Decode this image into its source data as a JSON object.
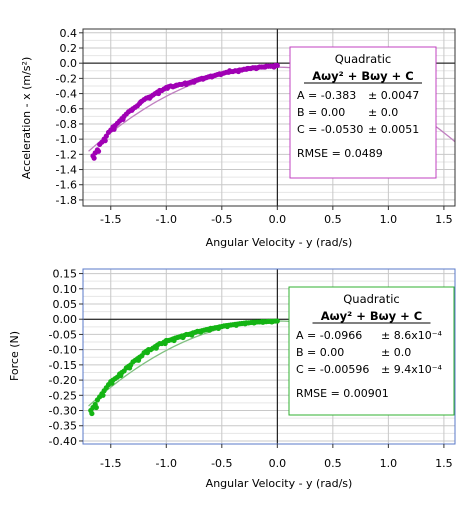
{
  "chart_data": [
    {
      "type": "scatter",
      "xlabel": "Angular Velocity - y (rad/s)",
      "ylabel": "Acceleration - x (m/s²)",
      "xlim": [
        -1.75,
        1.6
      ],
      "ylim": [
        -1.88,
        0.45
      ],
      "xticks": [
        "-1.5",
        "-1.0",
        "-0.5",
        "0.0",
        "0.5",
        "1.0",
        "1.5"
      ],
      "yticks": [
        "0.4",
        "0.2",
        "0.0",
        "-0.2",
        "-0.4",
        "-0.6",
        "-0.8",
        "-1.0",
        "-1.2",
        "-1.4",
        "-1.6",
        "-1.8"
      ],
      "grid": true,
      "color": "#a000b4",
      "fit": {
        "model": "quadratic",
        "A": -0.383,
        "B": 0.0,
        "C": -0.053,
        "range": [
          -1.7,
          1.6
        ],
        "color": "#c080c0",
        "title": "Quadratic",
        "formula": "Aωy² + Bωy + C",
        "rows": [
          {
            "label": "A = -0.383",
            "err": "± 0.0047"
          },
          {
            "label": "B = 0.00",
            "err": "± 0.0"
          },
          {
            "label": "C = -0.0530",
            "err": "± 0.0051"
          }
        ],
        "rmse": "RMSE = 0.0489",
        "box_color": "#c040c0"
      },
      "series": [
        {
          "points": [
            [
              -1.66,
              -1.22
            ],
            [
              -1.64,
              -1.18
            ],
            [
              -1.62,
              -1.14
            ],
            [
              -1.6,
              -1.07
            ],
            [
              -1.58,
              -1.04
            ],
            [
              -1.56,
              -1.0
            ],
            [
              -1.54,
              -0.96
            ],
            [
              -1.52,
              -0.91
            ],
            [
              -1.5,
              -0.88
            ],
            [
              -1.48,
              -0.84
            ],
            [
              -1.46,
              -0.82
            ],
            [
              -1.44,
              -0.79
            ],
            [
              -1.42,
              -0.76
            ],
            [
              -1.4,
              -0.73
            ],
            [
              -1.38,
              -0.7
            ],
            [
              -1.36,
              -0.67
            ],
            [
              -1.34,
              -0.64
            ],
            [
              -1.32,
              -0.62
            ],
            [
              -1.3,
              -0.6
            ],
            [
              -1.28,
              -0.58
            ],
            [
              -1.26,
              -0.56
            ],
            [
              -1.24,
              -0.53
            ],
            [
              -1.22,
              -0.5
            ],
            [
              -1.2,
              -0.48
            ],
            [
              -1.18,
              -0.46
            ],
            [
              -1.16,
              -0.45
            ],
            [
              -1.14,
              -0.44
            ],
            [
              -1.12,
              -0.42
            ],
            [
              -1.1,
              -0.4
            ],
            [
              -1.08,
              -0.38
            ],
            [
              -1.06,
              -0.36
            ],
            [
              -1.04,
              -0.36
            ],
            [
              -1.02,
              -0.34
            ],
            [
              -1.0,
              -0.32
            ],
            [
              -0.98,
              -0.31
            ],
            [
              -0.96,
              -0.3
            ],
            [
              -0.94,
              -0.31
            ],
            [
              -0.92,
              -0.3
            ],
            [
              -0.9,
              -0.29
            ],
            [
              -0.88,
              -0.28
            ],
            [
              -0.86,
              -0.28
            ],
            [
              -0.84,
              -0.27
            ],
            [
              -0.82,
              -0.28
            ],
            [
              -0.8,
              -0.26
            ],
            [
              -0.78,
              -0.25
            ],
            [
              -0.76,
              -0.24
            ],
            [
              -0.74,
              -0.23
            ],
            [
              -0.72,
              -0.22
            ],
            [
              -0.7,
              -0.21
            ],
            [
              -0.68,
              -0.2
            ],
            [
              -0.66,
              -0.2
            ],
            [
              -0.64,
              -0.19
            ],
            [
              -0.62,
              -0.18
            ],
            [
              -0.6,
              -0.17
            ],
            [
              -0.58,
              -0.17
            ],
            [
              -0.56,
              -0.16
            ],
            [
              -0.54,
              -0.15
            ],
            [
              -0.52,
              -0.14
            ],
            [
              -0.5,
              -0.14
            ],
            [
              -0.48,
              -0.13
            ],
            [
              -0.46,
              -0.12
            ],
            [
              -0.44,
              -0.12
            ],
            [
              -0.42,
              -0.11
            ],
            [
              -0.4,
              -0.11
            ],
            [
              -0.38,
              -0.1
            ],
            [
              -0.36,
              -0.1
            ],
            [
              -0.34,
              -0.09
            ],
            [
              -0.32,
              -0.09
            ],
            [
              -0.3,
              -0.08
            ],
            [
              -0.28,
              -0.08
            ],
            [
              -0.26,
              -0.07
            ],
            [
              -0.24,
              -0.07
            ],
            [
              -0.22,
              -0.06
            ],
            [
              -0.2,
              -0.06
            ],
            [
              -0.18,
              -0.06
            ],
            [
              -0.16,
              -0.05
            ],
            [
              -0.14,
              -0.05
            ],
            [
              -0.12,
              -0.05
            ],
            [
              -0.1,
              -0.04
            ],
            [
              -0.08,
              -0.04
            ],
            [
              -0.06,
              -0.04
            ],
            [
              -0.04,
              -0.04
            ],
            [
              -0.02,
              -0.03
            ],
            [
              0.0,
              -0.03
            ],
            [
              -1.65,
              -1.25
            ],
            [
              -1.61,
              -1.16
            ],
            [
              -1.55,
              -1.02
            ],
            [
              -1.47,
              -0.87
            ],
            [
              -1.39,
              -0.74
            ],
            [
              -1.31,
              -0.62
            ],
            [
              -1.23,
              -0.51
            ],
            [
              -1.15,
              -0.46
            ],
            [
              -1.07,
              -0.4
            ],
            [
              -0.99,
              -0.33
            ],
            [
              -0.91,
              -0.29
            ],
            [
              -0.83,
              -0.26
            ],
            [
              -0.75,
              -0.25
            ],
            [
              -0.67,
              -0.21
            ],
            [
              -0.59,
              -0.18
            ],
            [
              -0.51,
              -0.15
            ],
            [
              -0.43,
              -0.1
            ],
            [
              -0.35,
              -0.11
            ],
            [
              -0.27,
              -0.07
            ],
            [
              -0.19,
              -0.07
            ],
            [
              -0.11,
              -0.05
            ],
            [
              -0.03,
              -0.05
            ]
          ]
        }
      ]
    },
    {
      "type": "scatter",
      "xlabel": "Angular Velocity - y (rad/s)",
      "ylabel": "Force (N)",
      "xlim": [
        -1.75,
        1.6
      ],
      "ylim": [
        -0.41,
        0.165
      ],
      "xticks": [
        "-1.5",
        "-1.0",
        "-0.5",
        "0.0",
        "0.5",
        "1.0",
        "1.5"
      ],
      "yticks": [
        "0.15",
        "0.10",
        "0.05",
        "0.00",
        "-0.05",
        "-0.10",
        "-0.15",
        "-0.20",
        "-0.25",
        "-0.30",
        "-0.35",
        "-0.40"
      ],
      "grid": true,
      "color": "#14b414",
      "fit": {
        "model": "quadratic",
        "A": -0.0966,
        "B": 0.0,
        "C": -0.00596,
        "range": [
          -1.7,
          1.6
        ],
        "color": "#80c080",
        "title": "Quadratic",
        "formula": "Aωy² + Bωy + C",
        "rows": [
          {
            "label": "A = -0.0966",
            "err": "± 8.6x10⁻⁴"
          },
          {
            "label": "B = 0.00",
            "err": "± 0.0"
          },
          {
            "label": "C = -0.00596",
            "err": "± 9.4x10⁻⁴"
          }
        ],
        "rmse": "RMSE = 0.00901",
        "box_color": "#30b030"
      },
      "series": [
        {
          "points": [
            [
              -1.68,
              -0.3
            ],
            [
              -1.66,
              -0.29
            ],
            [
              -1.64,
              -0.28
            ],
            [
              -1.62,
              -0.265
            ],
            [
              -1.6,
              -0.255
            ],
            [
              -1.58,
              -0.245
            ],
            [
              -1.56,
              -0.235
            ],
            [
              -1.54,
              -0.225
            ],
            [
              -1.52,
              -0.215
            ],
            [
              -1.5,
              -0.205
            ],
            [
              -1.48,
              -0.2
            ],
            [
              -1.46,
              -0.195
            ],
            [
              -1.44,
              -0.19
            ],
            [
              -1.42,
              -0.18
            ],
            [
              -1.4,
              -0.175
            ],
            [
              -1.38,
              -0.17
            ],
            [
              -1.36,
              -0.16
            ],
            [
              -1.34,
              -0.155
            ],
            [
              -1.32,
              -0.15
            ],
            [
              -1.3,
              -0.14
            ],
            [
              -1.28,
              -0.135
            ],
            [
              -1.26,
              -0.13
            ],
            [
              -1.24,
              -0.125
            ],
            [
              -1.22,
              -0.12
            ],
            [
              -1.2,
              -0.11
            ],
            [
              -1.18,
              -0.105
            ],
            [
              -1.16,
              -0.1
            ],
            [
              -1.14,
              -0.1
            ],
            [
              -1.12,
              -0.095
            ],
            [
              -1.1,
              -0.09
            ],
            [
              -1.08,
              -0.085
            ],
            [
              -1.06,
              -0.08
            ],
            [
              -1.04,
              -0.08
            ],
            [
              -1.02,
              -0.075
            ],
            [
              -1.0,
              -0.07
            ],
            [
              -0.98,
              -0.07
            ],
            [
              -0.96,
              -0.068
            ],
            [
              -0.94,
              -0.065
            ],
            [
              -0.92,
              -0.062
            ],
            [
              -0.9,
              -0.06
            ],
            [
              -0.88,
              -0.058
            ],
            [
              -0.86,
              -0.055
            ],
            [
              -0.84,
              -0.054
            ],
            [
              -0.82,
              -0.05
            ],
            [
              -0.8,
              -0.05
            ],
            [
              -0.78,
              -0.048
            ],
            [
              -0.76,
              -0.045
            ],
            [
              -0.74,
              -0.043
            ],
            [
              -0.72,
              -0.04
            ],
            [
              -0.7,
              -0.04
            ],
            [
              -0.68,
              -0.038
            ],
            [
              -0.66,
              -0.036
            ],
            [
              -0.64,
              -0.034
            ],
            [
              -0.62,
              -0.033
            ],
            [
              -0.6,
              -0.03
            ],
            [
              -0.58,
              -0.03
            ],
            [
              -0.56,
              -0.028
            ],
            [
              -0.54,
              -0.027
            ],
            [
              -0.52,
              -0.025
            ],
            [
              -0.5,
              -0.024
            ],
            [
              -0.48,
              -0.022
            ],
            [
              -0.46,
              -0.021
            ],
            [
              -0.44,
              -0.02
            ],
            [
              -0.42,
              -0.019
            ],
            [
              -0.4,
              -0.018
            ],
            [
              -0.38,
              -0.017
            ],
            [
              -0.36,
              -0.016
            ],
            [
              -0.34,
              -0.015
            ],
            [
              -0.32,
              -0.014
            ],
            [
              -0.3,
              -0.013
            ],
            [
              -0.28,
              -0.012
            ],
            [
              -0.26,
              -0.012
            ],
            [
              -0.24,
              -0.011
            ],
            [
              -0.22,
              -0.01
            ],
            [
              -0.2,
              -0.01
            ],
            [
              -0.18,
              -0.009
            ],
            [
              -0.16,
              -0.009
            ],
            [
              -0.14,
              -0.008
            ],
            [
              -0.12,
              -0.008
            ],
            [
              -0.1,
              -0.008
            ],
            [
              -0.08,
              -0.007
            ],
            [
              -0.06,
              -0.007
            ],
            [
              -0.04,
              -0.007
            ],
            [
              -0.02,
              -0.006
            ],
            [
              0.0,
              -0.006
            ],
            [
              -1.67,
              -0.31
            ],
            [
              -1.63,
              -0.29
            ],
            [
              -1.57,
              -0.25
            ],
            [
              -1.49,
              -0.21
            ],
            [
              -1.41,
              -0.185
            ],
            [
              -1.33,
              -0.16
            ],
            [
              -1.25,
              -0.135
            ],
            [
              -1.17,
              -0.11
            ],
            [
              -1.09,
              -0.095
            ],
            [
              -1.01,
              -0.08
            ],
            [
              -0.93,
              -0.07
            ],
            [
              -0.85,
              -0.06
            ],
            [
              -0.77,
              -0.052
            ],
            [
              -0.69,
              -0.042
            ],
            [
              -0.61,
              -0.036
            ],
            [
              -0.53,
              -0.03
            ],
            [
              -0.45,
              -0.024
            ],
            [
              -0.37,
              -0.02
            ],
            [
              -0.29,
              -0.015
            ],
            [
              -0.21,
              -0.012
            ],
            [
              -0.13,
              -0.01
            ],
            [
              -0.05,
              -0.009
            ]
          ]
        }
      ]
    }
  ]
}
